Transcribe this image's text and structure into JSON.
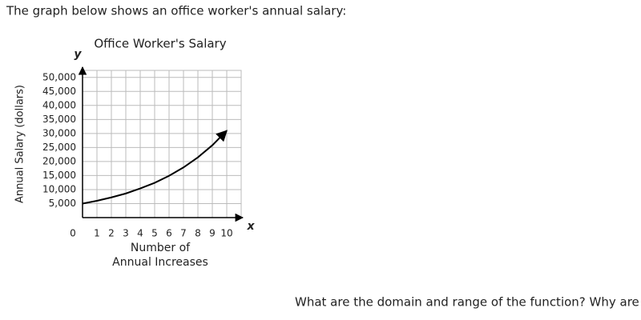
{
  "prompt": "The graph below shows an office worker's annual salary:",
  "question": "What are the domain and range of the function? Why are the x-values nonnegative?",
  "chart_data": {
    "type": "line",
    "title": "Office Worker's Salary",
    "xlabel": [
      "Number of",
      "Annual Increases"
    ],
    "ylabel": "Annual Salary (dollars)",
    "x_axis_name": "x",
    "y_axis_name": "y",
    "x": [
      0,
      1,
      2,
      3,
      4,
      5,
      6,
      7,
      8,
      9,
      10
    ],
    "values": [
      5000,
      6000,
      7200,
      8600,
      10400,
      12400,
      14900,
      17900,
      21500,
      25800,
      31000
    ],
    "color": "#000000",
    "xlim": [
      0,
      11
    ],
    "ylim": [
      0,
      52500
    ],
    "xticks": [
      0,
      1,
      2,
      3,
      4,
      5,
      6,
      7,
      8,
      9,
      10
    ],
    "yticks": [
      {
        "value": 5000,
        "label": "5,000"
      },
      {
        "value": 10000,
        "label": "10,000"
      },
      {
        "value": 15000,
        "label": "15,000"
      },
      {
        "value": 20000,
        "label": "20,000"
      },
      {
        "value": 25000,
        "label": "25,000"
      },
      {
        "value": 30000,
        "label": "30,000"
      },
      {
        "value": 35000,
        "label": "35,000"
      },
      {
        "value": 40000,
        "label": "40,000"
      },
      {
        "value": 45000,
        "label": "45,000"
      },
      {
        "value": 50000,
        "label": "50,000"
      }
    ],
    "grid": true
  }
}
